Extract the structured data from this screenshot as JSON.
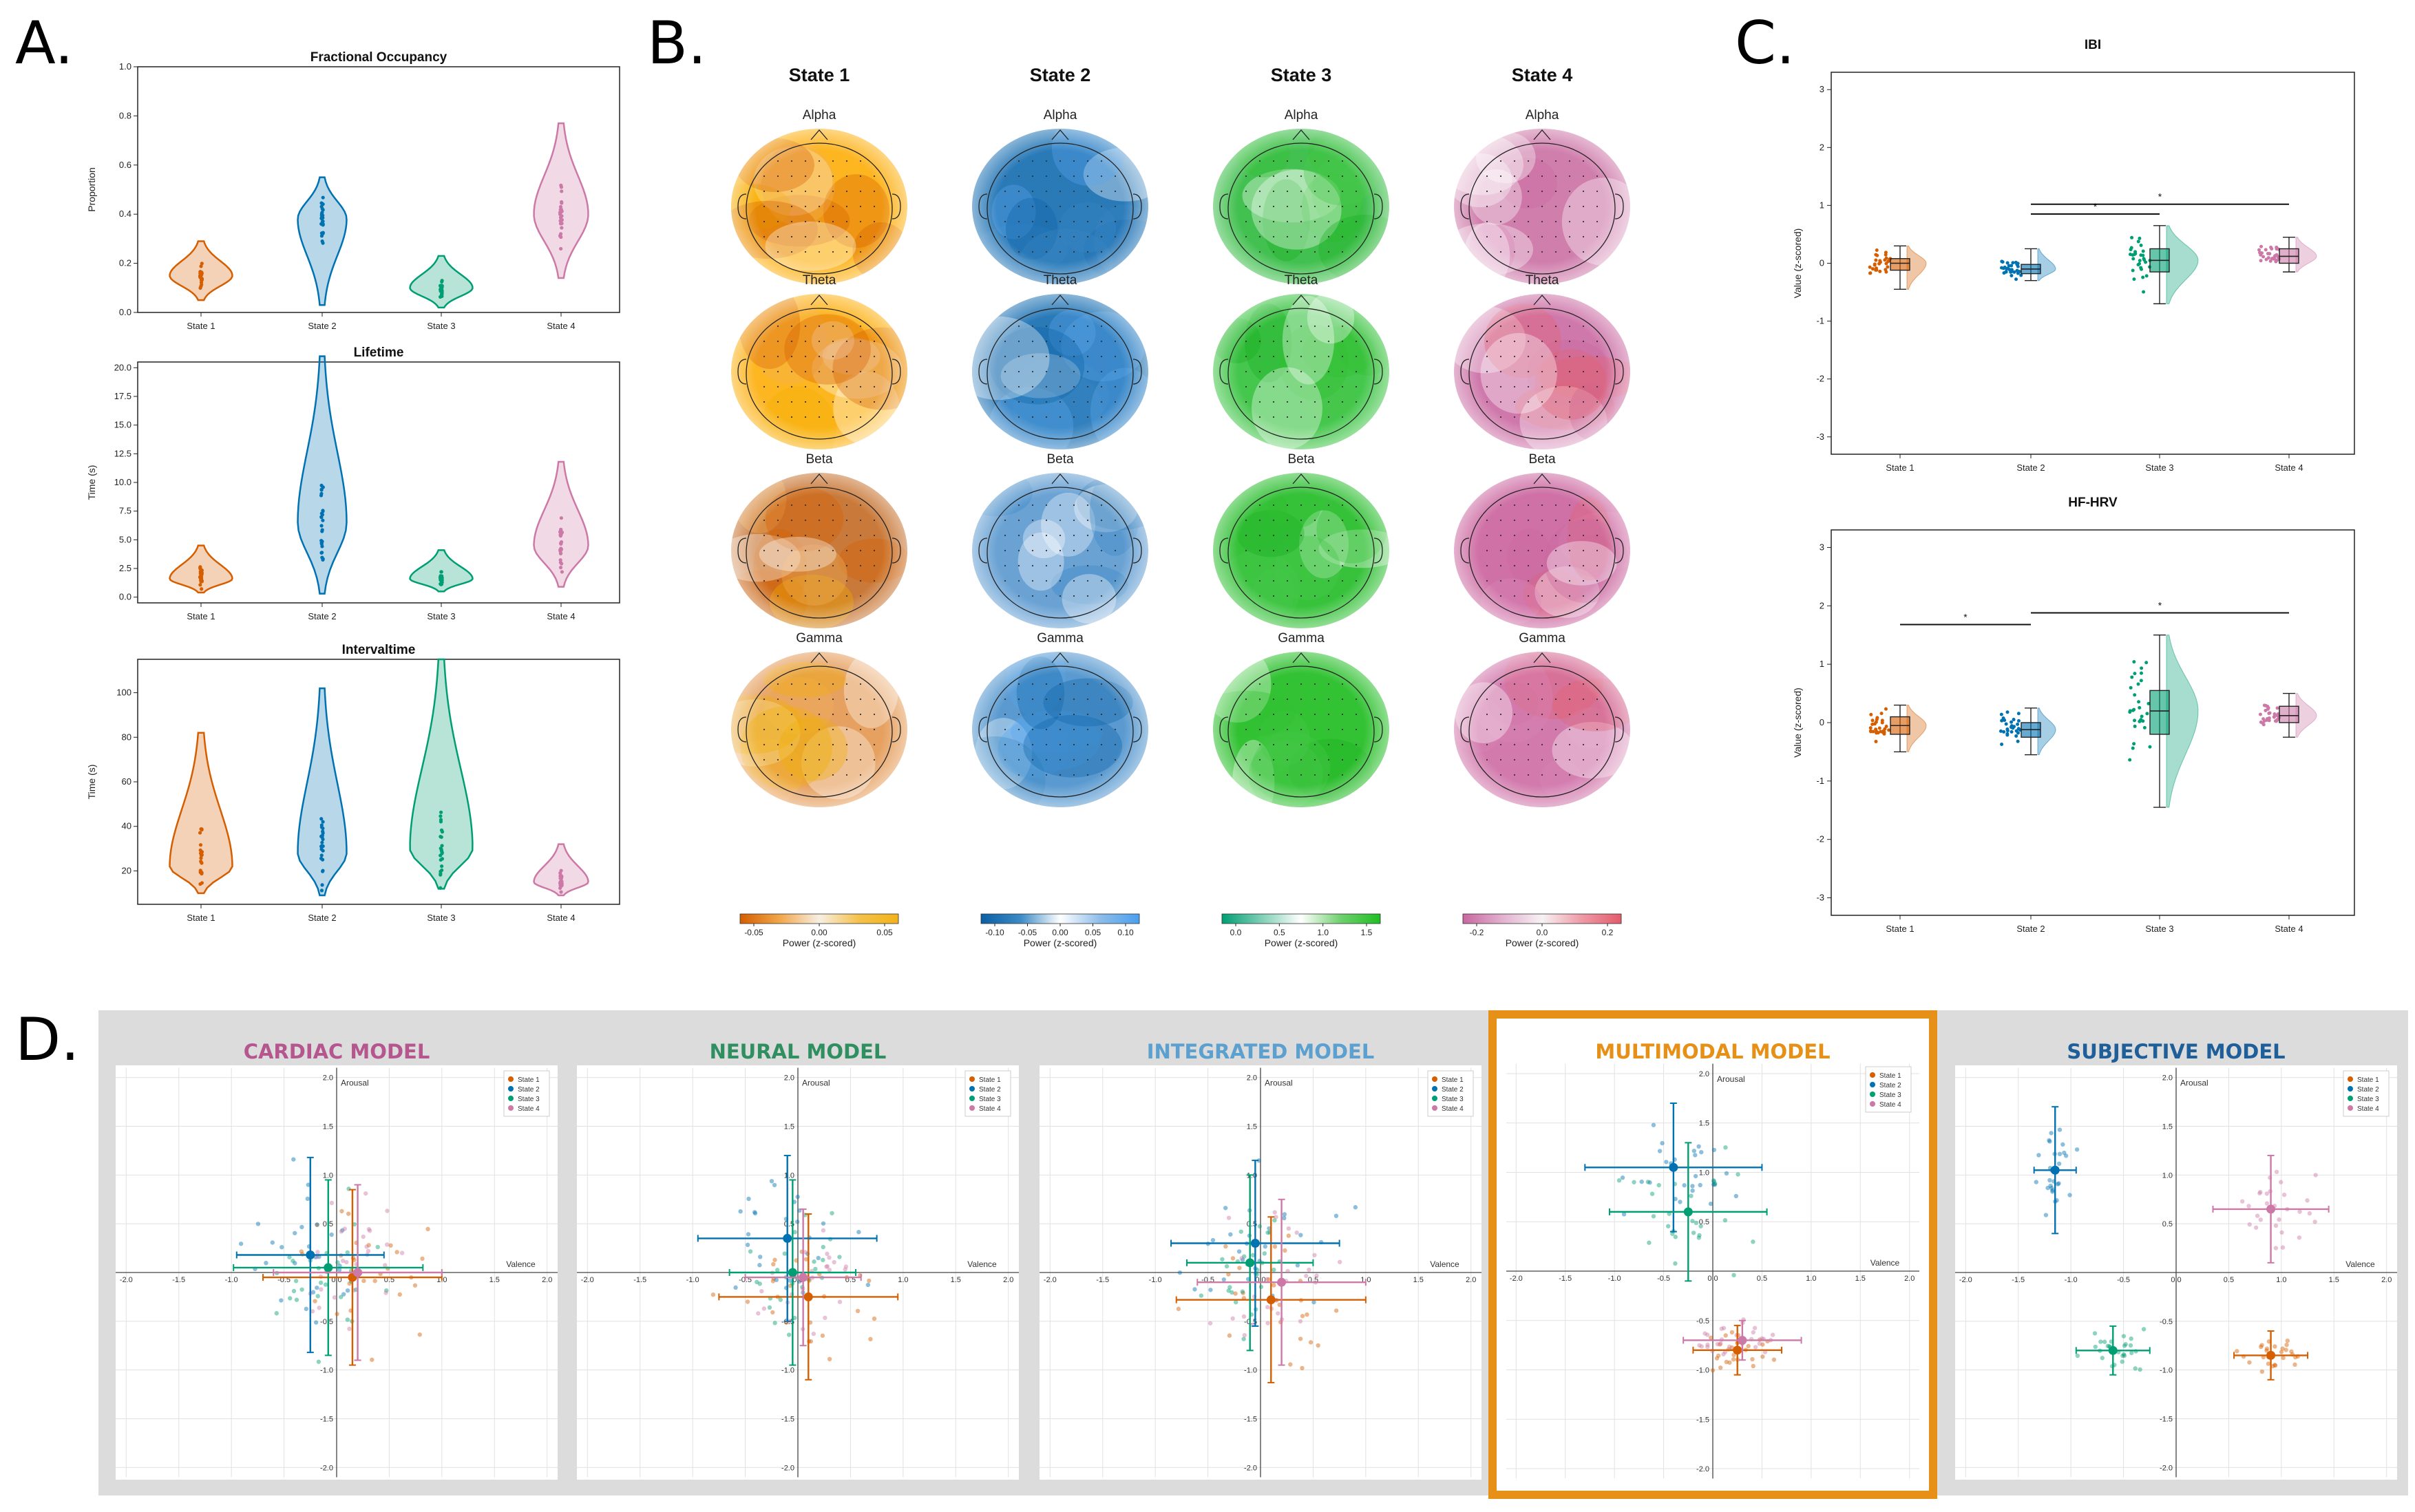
{
  "colors": {
    "state1": "#d55e00",
    "state2": "#0072b2",
    "state3": "#009e73",
    "state4": "#cc79a7",
    "highlight": "#e69017",
    "panel_bg": "#dcdcdc"
  },
  "panel_labels": [
    "A.",
    "B.",
    "C.",
    "D."
  ],
  "state_names": [
    "State 1",
    "State 2",
    "State 3",
    "State 4"
  ],
  "panelA": {
    "plots": [
      {
        "title": "Fractional Occupancy",
        "ylabel": "Proportion",
        "yticks": [
          "0.0",
          "0.2",
          "0.4",
          "0.6",
          "0.8",
          "1.0"
        ],
        "ylim": [
          0,
          1.0
        ],
        "ytick_values": [
          0,
          0.2,
          0.4,
          0.6,
          0.8,
          1.0
        ],
        "medians": [
          0.15,
          0.38,
          0.1,
          0.4
        ],
        "ranges": [
          [
            0.05,
            0.29
          ],
          [
            0.03,
            0.55
          ],
          [
            0.02,
            0.23
          ],
          [
            0.14,
            0.77
          ]
        ]
      },
      {
        "title": "Lifetime",
        "ylabel": "Time (s)",
        "yticks": [
          "0.0",
          "2.5",
          "5.0",
          "7.5",
          "10.0",
          "12.5",
          "15.0",
          "17.5",
          "20.0"
        ],
        "ylim": [
          -0.5,
          20.5
        ],
        "ytick_values": [
          0,
          2.5,
          5,
          7.5,
          10,
          12.5,
          15,
          17.5,
          20
        ],
        "medians": [
          1.6,
          6.5,
          1.6,
          4.5
        ],
        "ranges": [
          [
            0.4,
            4.5
          ],
          [
            0.3,
            21.0
          ],
          [
            0.5,
            4.1
          ],
          [
            0.9,
            11.8
          ]
        ]
      },
      {
        "title": "Intervaltime",
        "ylabel": "Time (s)",
        "yticks": [
          "20",
          "40",
          "60",
          "80",
          "100"
        ],
        "ylim": [
          5,
          115
        ],
        "ytick_values": [
          20,
          40,
          60,
          80,
          100
        ],
        "medians": [
          22,
          28,
          30,
          15
        ],
        "ranges": [
          [
            10,
            82
          ],
          [
            9,
            102
          ],
          [
            12,
            115
          ],
          [
            9,
            32
          ]
        ]
      }
    ]
  },
  "panelB": {
    "states": [
      "State 1",
      "State 2",
      "State 3",
      "State 4"
    ],
    "bands": [
      "Alpha",
      "Theta",
      "Beta",
      "Gamma"
    ],
    "colorbars": [
      {
        "ticks": [
          "-0.05",
          "0.00",
          "0.05"
        ],
        "label": "Power (z-scored)"
      },
      {
        "ticks": [
          "-0.10",
          "-0.05",
          "0.00",
          "0.05",
          "0.10"
        ],
        "label": "Power (z-scored)"
      },
      {
        "ticks": [
          "0.0",
          "0.5",
          "1.0",
          "1.5"
        ],
        "label": "Power (z-scored)"
      },
      {
        "ticks": [
          "-0.2",
          "0.0",
          "0.2"
        ],
        "label": "Power (z-scored)"
      }
    ]
  },
  "panelC": {
    "plots": [
      {
        "title": "IBI",
        "ylabel": "Value (z-scored)",
        "yticks": [
          "-3",
          "-2",
          "-1",
          "0",
          "1",
          "2",
          "3"
        ],
        "ytick_values": [
          -3,
          -2,
          -1,
          0,
          1,
          2,
          3
        ],
        "boxes": [
          {
            "q1": -0.12,
            "med": 0.0,
            "q3": 0.08,
            "lo": -0.45,
            "hi": 0.3
          },
          {
            "q1": -0.18,
            "med": -0.1,
            "q3": -0.02,
            "lo": -0.3,
            "hi": 0.25
          },
          {
            "q1": -0.15,
            "med": 0.05,
            "q3": 0.25,
            "lo": -0.7,
            "hi": 0.65
          },
          {
            "q1": 0.0,
            "med": 0.12,
            "q3": 0.25,
            "lo": -0.15,
            "hi": 0.45
          }
        ],
        "significance": [
          {
            "from": 2,
            "to": 3,
            "y": 0.85,
            "label": "*"
          },
          {
            "from": 2,
            "to": 4,
            "y": 1.02,
            "label": "*"
          }
        ]
      },
      {
        "title": "HF-HRV",
        "ylabel": "Value (z-scored)",
        "yticks": [
          "-3",
          "-2",
          "-1",
          "0",
          "1",
          "2",
          "3"
        ],
        "ytick_values": [
          -3,
          -2,
          -1,
          0,
          1,
          2,
          3
        ],
        "boxes": [
          {
            "q1": -0.2,
            "med": -0.05,
            "q3": 0.1,
            "lo": -0.5,
            "hi": 0.3
          },
          {
            "q1": -0.25,
            "med": -0.12,
            "q3": 0.0,
            "lo": -0.55,
            "hi": 0.25
          },
          {
            "q1": -0.2,
            "med": 0.2,
            "q3": 0.55,
            "lo": -1.45,
            "hi": 1.5
          },
          {
            "q1": 0.0,
            "med": 0.12,
            "q3": 0.28,
            "lo": -0.25,
            "hi": 0.5
          }
        ],
        "significance": [
          {
            "from": 1,
            "to": 2,
            "y": 1.68,
            "label": "*"
          },
          {
            "from": 2,
            "to": 4,
            "y": 1.88,
            "label": "*"
          }
        ]
      }
    ]
  },
  "panelD": {
    "axis_ticks": [
      "-2.0",
      "-1.5",
      "-1.0",
      "-0.5",
      "0.0",
      "0.5",
      "1.0",
      "1.5",
      "2.0"
    ],
    "xlabel": "Valence",
    "ylabel": "Arousal",
    "legend": [
      "State 1",
      "State 2",
      "State 3",
      "State 4"
    ],
    "models": [
      {
        "title": "CARDIAC MODEL",
        "color": "#b5568f",
        "highlight": false,
        "means": [
          [
            0.15,
            -0.05
          ],
          [
            -0.25,
            0.18
          ],
          [
            -0.08,
            0.05
          ],
          [
            0.2,
            0.0
          ]
        ],
        "sd": [
          [
            0.85,
            0.9
          ],
          [
            0.7,
            1.0
          ],
          [
            0.9,
            0.9
          ],
          [
            0.8,
            0.9
          ]
        ]
      },
      {
        "title": "NEURAL MODEL",
        "color": "#2f8f60",
        "highlight": false,
        "means": [
          [
            0.1,
            -0.25
          ],
          [
            -0.1,
            0.35
          ],
          [
            -0.05,
            0.0
          ],
          [
            0.05,
            -0.05
          ]
        ],
        "sd": [
          [
            0.85,
            0.85
          ],
          [
            0.85,
            0.85
          ],
          [
            0.6,
            0.95
          ],
          [
            0.55,
            0.7
          ]
        ]
      },
      {
        "title": "INTEGRATED MODEL",
        "color": "#5ba0cf",
        "highlight": false,
        "means": [
          [
            0.1,
            -0.28
          ],
          [
            -0.05,
            0.3
          ],
          [
            -0.1,
            0.1
          ],
          [
            0.2,
            -0.1
          ]
        ],
        "sd": [
          [
            0.9,
            0.85
          ],
          [
            0.8,
            0.85
          ],
          [
            0.6,
            0.9
          ],
          [
            0.8,
            0.85
          ]
        ]
      },
      {
        "title": "MULTIMODAL MODEL",
        "color": "#e69017",
        "highlight": true,
        "means": [
          [
            0.25,
            -0.8
          ],
          [
            -0.4,
            1.05
          ],
          [
            -0.25,
            0.6
          ],
          [
            0.3,
            -0.7
          ]
        ],
        "sd": [
          [
            0.45,
            0.25
          ],
          [
            0.9,
            0.65
          ],
          [
            0.8,
            0.7
          ],
          [
            0.6,
            0.2
          ]
        ]
      },
      {
        "title": "SUBJECTIVE MODEL",
        "color": "#1f5f99",
        "highlight": false,
        "means": [
          [
            0.9,
            -0.85
          ],
          [
            -1.15,
            1.05
          ],
          [
            -0.6,
            -0.8
          ],
          [
            0.9,
            0.65
          ]
        ],
        "sd": [
          [
            0.35,
            0.25
          ],
          [
            0.2,
            0.65
          ],
          [
            0.35,
            0.25
          ],
          [
            0.55,
            0.55
          ]
        ]
      }
    ]
  }
}
